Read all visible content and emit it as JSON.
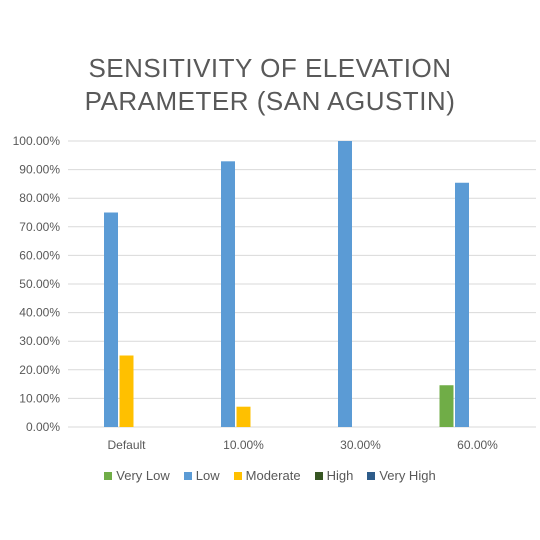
{
  "chart_data": {
    "type": "bar",
    "title": "SENSITIVITY OF ELEVATION\nPARAMETER (SAN AGUSTIN)",
    "categories": [
      "Default",
      "10.00%",
      "30.00%",
      "60.00%"
    ],
    "yticks": [
      "0.00%",
      "10.00%",
      "20.00%",
      "30.00%",
      "40.00%",
      "50.00%",
      "60.00%",
      "70.00%",
      "80.00%",
      "90.00%",
      "100.00%"
    ],
    "ylim": [
      0,
      100
    ],
    "grid": true,
    "legend_position": "bottom",
    "series": [
      {
        "name": "Very Low",
        "color": "#70AD47",
        "values": [
          0,
          0,
          0,
          14.6
        ]
      },
      {
        "name": "Low",
        "color": "#5B9BD5",
        "values": [
          75,
          92.9,
          100,
          85.4
        ]
      },
      {
        "name": "Moderate",
        "color": "#FFC000",
        "values": [
          25,
          7.1,
          0,
          0
        ]
      },
      {
        "name": "High",
        "color": "#375623",
        "values": [
          0,
          0,
          0,
          0
        ]
      },
      {
        "name": "Very High",
        "color": "#2E5C8A",
        "values": [
          0,
          0,
          0,
          0
        ]
      }
    ]
  }
}
